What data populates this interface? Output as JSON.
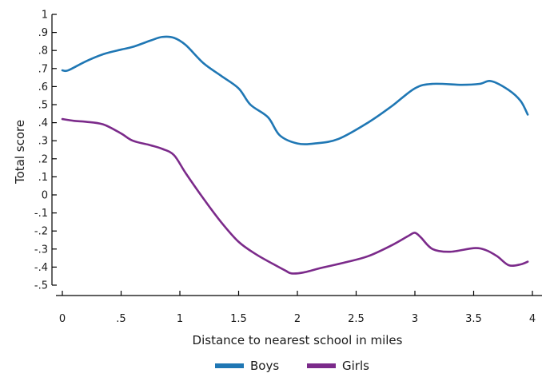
{
  "chart_data": {
    "type": "line",
    "xlabel": "Distance to nearest school in miles",
    "ylabel": "Total score",
    "xlim": [
      -0.05,
      4.05
    ],
    "ylim": [
      -0.55,
      1.0
    ],
    "xticks": [
      {
        "value": 0,
        "label": "0"
      },
      {
        "value": 0.5,
        "label": ".5"
      },
      {
        "value": 1,
        "label": "1"
      },
      {
        "value": 1.5,
        "label": "1.5"
      },
      {
        "value": 2,
        "label": "2"
      },
      {
        "value": 2.5,
        "label": "2.5"
      },
      {
        "value": 3,
        "label": "3"
      },
      {
        "value": 3.5,
        "label": "3.5"
      },
      {
        "value": 4,
        "label": "4"
      }
    ],
    "yticks": [
      {
        "value": 1,
        "label": "1"
      },
      {
        "value": 0.9,
        "label": ".9"
      },
      {
        "value": 0.8,
        "label": ".8"
      },
      {
        "value": 0.7,
        "label": ".7"
      },
      {
        "value": 0.6,
        "label": ".6"
      },
      {
        "value": 0.5,
        "label": ".5"
      },
      {
        "value": 0.4,
        "label": ".4"
      },
      {
        "value": 0.3,
        "label": ".3"
      },
      {
        "value": 0.2,
        "label": ".2"
      },
      {
        "value": 0.1,
        "label": ".1"
      },
      {
        "value": 0,
        "label": "0"
      },
      {
        "value": -0.1,
        "label": "-.1"
      },
      {
        "value": -0.2,
        "label": "-.2"
      },
      {
        "value": -0.3,
        "label": "-.3"
      },
      {
        "value": -0.4,
        "label": "-.4"
      },
      {
        "value": -0.5,
        "label": "-.5"
      }
    ],
    "grid": false,
    "legend_position": "bottom",
    "series": [
      {
        "name": "Boys",
        "color": "#1f77b4",
        "x": [
          0,
          0.05,
          0.2,
          0.35,
          0.5,
          0.6,
          0.75,
          0.85,
          0.95,
          1.05,
          1.2,
          1.35,
          1.5,
          1.6,
          1.75,
          1.85,
          2.0,
          2.15,
          2.35,
          2.6,
          2.8,
          3.0,
          3.15,
          3.4,
          3.55,
          3.65,
          3.8,
          3.9,
          3.96
        ],
        "y": [
          0.69,
          0.69,
          0.74,
          0.78,
          0.805,
          0.82,
          0.855,
          0.875,
          0.87,
          0.83,
          0.73,
          0.66,
          0.59,
          0.5,
          0.43,
          0.33,
          0.285,
          0.285,
          0.31,
          0.4,
          0.49,
          0.59,
          0.615,
          0.61,
          0.615,
          0.63,
          0.58,
          0.52,
          0.445
        ]
      },
      {
        "name": "Girls",
        "color": "#7b2a8a",
        "x": [
          0,
          0.1,
          0.2,
          0.35,
          0.5,
          0.6,
          0.75,
          0.85,
          0.95,
          1.05,
          1.2,
          1.35,
          1.5,
          1.65,
          1.8,
          1.9,
          1.95,
          2.05,
          2.2,
          2.4,
          2.6,
          2.8,
          2.95,
          3.0,
          3.05,
          3.15,
          3.3,
          3.5,
          3.6,
          3.7,
          3.8,
          3.9,
          3.96
        ],
        "y": [
          0.42,
          0.41,
          0.405,
          0.39,
          0.34,
          0.3,
          0.275,
          0.255,
          0.22,
          0.12,
          -0.02,
          -0.15,
          -0.26,
          -0.33,
          -0.385,
          -0.42,
          -0.435,
          -0.43,
          -0.405,
          -0.375,
          -0.34,
          -0.28,
          -0.225,
          -0.21,
          -0.235,
          -0.3,
          -0.315,
          -0.295,
          -0.305,
          -0.34,
          -0.39,
          -0.385,
          -0.37
        ]
      }
    ]
  }
}
